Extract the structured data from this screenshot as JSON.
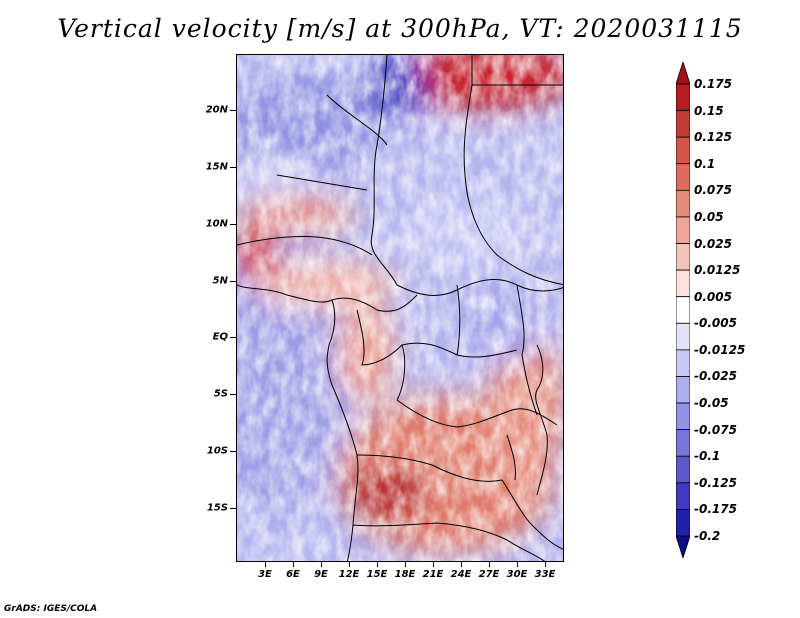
{
  "title": "Vertical velocity [m/s] at 300hPa, VT: 2020031115",
  "credit": "GrADS: IGES/COLA",
  "map": {
    "variable": "Vertical velocity",
    "units": "m/s",
    "level": "300hPa",
    "valid_time": "2020031115",
    "lon_range": [
      0,
      35
    ],
    "lat_range": [
      -20,
      24
    ],
    "lat_labels": [
      "20N",
      "15N",
      "10N",
      "5N",
      "EQ",
      "5S",
      "10S",
      "15S"
    ],
    "lon_labels": [
      "3E",
      "6E",
      "9E",
      "12E",
      "15E",
      "18E",
      "21E",
      "24E",
      "27E",
      "30E",
      "33E"
    ]
  },
  "colorbar": {
    "levels": [
      "0.175",
      "0.15",
      "0.125",
      "0.1",
      "0.075",
      "0.05",
      "0.025",
      "0.0125",
      "0.005",
      "-0.005",
      "-0.0125",
      "-0.025",
      "-0.05",
      "-0.075",
      "-0.1",
      "-0.125",
      "-0.175",
      "-0.2"
    ],
    "colors": [
      "#a50f15",
      "#b51d1f",
      "#c43a32",
      "#d25547",
      "#dd6e5d",
      "#e68a7a",
      "#eea698",
      "#f5c4b8",
      "#fae2db",
      "#ffffff",
      "#e3e3fb",
      "#c8c8f5",
      "#aeaeee",
      "#9292e4",
      "#7676d8",
      "#5a5acb",
      "#3d3dbb",
      "#2121a8",
      "#0c0c8a"
    ]
  }
}
